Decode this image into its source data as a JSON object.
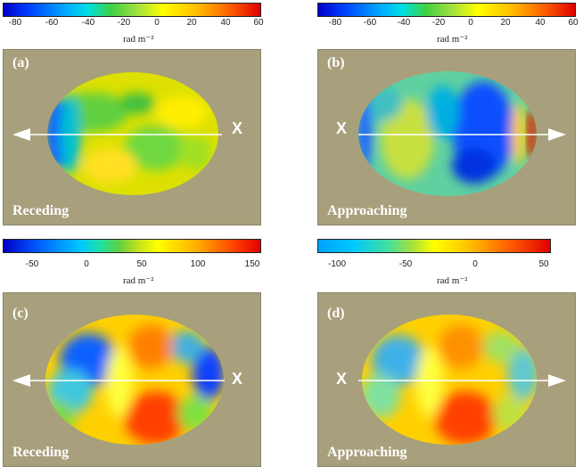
{
  "colorbars": [
    {
      "ticks": [
        "-80",
        "-60",
        "-40",
        "-20",
        "0",
        "20",
        "40",
        "60"
      ],
      "unit": "rad m⁻²"
    },
    {
      "ticks": [
        "-80",
        "-60",
        "-40",
        "-20",
        "0",
        "20",
        "40",
        "60"
      ],
      "unit": "rad m⁻²"
    },
    {
      "ticks": [
        "-50",
        "0",
        "50",
        "100",
        "150"
      ],
      "unit": "rad m⁻²"
    },
    {
      "ticks": [
        "-100",
        "-50",
        "0",
        "50"
      ],
      "unit": "rad m⁻²"
    }
  ],
  "panels": [
    {
      "label": "(a)",
      "desc": "Receding",
      "x": "X"
    },
    {
      "label": "(b)",
      "desc": "Approaching",
      "x": "X"
    },
    {
      "label": "(c)",
      "desc": "Receding",
      "x": "X"
    },
    {
      "label": "(d)",
      "desc": "Approaching",
      "x": "X"
    }
  ],
  "colors": {
    "background": "#a8a07c",
    "arrow": "#ffffff"
  }
}
